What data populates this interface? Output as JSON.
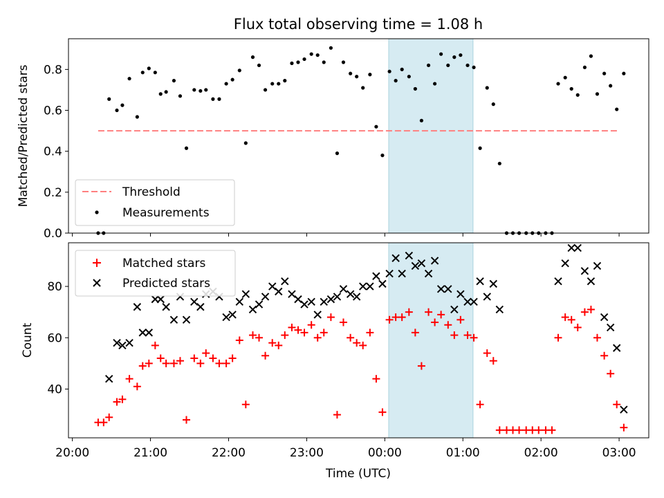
{
  "colors": {
    "threshold": "#ff7f7f",
    "measurement": "#000000",
    "matched": "#ff0000",
    "predicted": "#000000",
    "highlight": "#add8e6"
  },
  "chart_data": {
    "title": "Flux total observing time = 1.08 h",
    "xlabel": "Time (UTC)",
    "x_unit": "hours since 20:00 UTC",
    "x_range": [
      -0.05,
      7.38
    ],
    "x_ticks": [
      0,
      1,
      2,
      3,
      4,
      5,
      6,
      7
    ],
    "x_ticklabels": [
      "20:00",
      "21:00",
      "22:00",
      "23:00",
      "00:00",
      "01:00",
      "02:00",
      "03:00"
    ],
    "highlight_span": [
      4.05,
      5.13
    ],
    "panels": [
      {
        "type": "scatter",
        "ylabel": "Matched/Predicted stars",
        "ylim": [
          0,
          0.95
        ],
        "y_ticks": [
          0.0,
          0.2,
          0.4,
          0.6,
          0.8
        ],
        "y_ticklabels": [
          "0.0",
          "0.2",
          "0.4",
          "0.6",
          "0.8"
        ],
        "legend": {
          "position": "lower-left",
          "entries": [
            "Threshold",
            "Measurements"
          ]
        },
        "threshold": {
          "name": "Threshold",
          "value": 0.5,
          "x": [
            0.33,
            7.0
          ],
          "style": "dashed"
        },
        "series": [
          {
            "name": "Measurements",
            "marker": "dot",
            "points": [
              [
                0.33,
                0.0
              ],
              [
                0.4,
                0.0
              ],
              [
                0.47,
                0.655
              ],
              [
                0.57,
                0.6
              ],
              [
                0.64,
                0.625
              ],
              [
                0.73,
                0.755
              ],
              [
                0.83,
                0.568
              ],
              [
                0.9,
                0.785
              ],
              [
                0.98,
                0.805
              ],
              [
                1.06,
                0.785
              ],
              [
                1.13,
                0.68
              ],
              [
                1.2,
                0.69
              ],
              [
                1.3,
                0.745
              ],
              [
                1.38,
                0.67
              ],
              [
                1.46,
                0.415
              ],
              [
                1.56,
                0.7
              ],
              [
                1.64,
                0.695
              ],
              [
                1.71,
                0.7
              ],
              [
                1.8,
                0.655
              ],
              [
                1.88,
                0.655
              ],
              [
                1.97,
                0.73
              ],
              [
                2.05,
                0.75
              ],
              [
                2.14,
                0.795
              ],
              [
                2.22,
                0.44
              ],
              [
                2.31,
                0.86
              ],
              [
                2.39,
                0.82
              ],
              [
                2.47,
                0.7
              ],
              [
                2.56,
                0.73
              ],
              [
                2.64,
                0.73
              ],
              [
                2.72,
                0.745
              ],
              [
                2.81,
                0.83
              ],
              [
                2.89,
                0.835
              ],
              [
                2.97,
                0.85
              ],
              [
                3.06,
                0.875
              ],
              [
                3.14,
                0.87
              ],
              [
                3.22,
                0.835
              ],
              [
                3.31,
                0.905
              ],
              [
                3.39,
                0.39
              ],
              [
                3.47,
                0.835
              ],
              [
                3.56,
                0.78
              ],
              [
                3.64,
                0.765
              ],
              [
                3.72,
                0.71
              ],
              [
                3.81,
                0.775
              ],
              [
                3.89,
                0.52
              ],
              [
                3.97,
                0.38
              ],
              [
                4.06,
                0.79
              ],
              [
                4.14,
                0.745
              ],
              [
                4.22,
                0.8
              ],
              [
                4.31,
                0.765
              ],
              [
                4.39,
                0.705
              ],
              [
                4.47,
                0.55
              ],
              [
                4.56,
                0.82
              ],
              [
                4.64,
                0.73
              ],
              [
                4.72,
                0.875
              ],
              [
                4.81,
                0.82
              ],
              [
                4.89,
                0.86
              ],
              [
                4.97,
                0.87
              ],
              [
                5.06,
                0.82
              ],
              [
                5.14,
                0.81
              ],
              [
                5.22,
                0.415
              ],
              [
                5.31,
                0.71
              ],
              [
                5.39,
                0.63
              ],
              [
                5.47,
                0.34
              ],
              [
                5.56,
                0.0
              ],
              [
                5.64,
                0.0
              ],
              [
                5.72,
                0.0
              ],
              [
                5.81,
                0.0
              ],
              [
                5.89,
                0.0
              ],
              [
                5.97,
                0.0
              ],
              [
                6.06,
                0.0
              ],
              [
                6.14,
                0.0
              ],
              [
                6.22,
                0.73
              ],
              [
                6.31,
                0.76
              ],
              [
                6.39,
                0.705
              ],
              [
                6.47,
                0.675
              ],
              [
                6.56,
                0.81
              ],
              [
                6.64,
                0.865
              ],
              [
                6.72,
                0.68
              ],
              [
                6.81,
                0.78
              ],
              [
                6.89,
                0.72
              ],
              [
                6.97,
                0.605
              ],
              [
                7.06,
                0.78
              ]
            ]
          }
        ]
      },
      {
        "type": "scatter",
        "ylabel": "Count",
        "ylim": [
          21,
          97
        ],
        "y_ticks": [
          40,
          60,
          80
        ],
        "y_ticklabels": [
          "40",
          "60",
          "80"
        ],
        "legend": {
          "position": "upper-left",
          "entries": [
            "Matched stars",
            "Predicted stars"
          ]
        },
        "series": [
          {
            "name": "Matched stars",
            "marker": "plus",
            "points": [
              [
                0.33,
                27
              ],
              [
                0.4,
                27
              ],
              [
                0.47,
                29
              ],
              [
                0.57,
                35
              ],
              [
                0.64,
                36
              ],
              [
                0.73,
                44
              ],
              [
                0.83,
                41
              ],
              [
                0.9,
                49
              ],
              [
                0.98,
                50
              ],
              [
                1.06,
                57
              ],
              [
                1.13,
                52
              ],
              [
                1.2,
                50
              ],
              [
                1.3,
                50
              ],
              [
                1.38,
                51
              ],
              [
                1.46,
                28
              ],
              [
                1.56,
                52
              ],
              [
                1.64,
                50
              ],
              [
                1.71,
                54
              ],
              [
                1.8,
                52
              ],
              [
                1.88,
                50
              ],
              [
                1.97,
                50
              ],
              [
                2.05,
                52
              ],
              [
                2.14,
                59
              ],
              [
                2.22,
                34
              ],
              [
                2.31,
                61
              ],
              [
                2.39,
                60
              ],
              [
                2.47,
                53
              ],
              [
                2.56,
                58
              ],
              [
                2.64,
                57
              ],
              [
                2.72,
                61
              ],
              [
                2.81,
                64
              ],
              [
                2.89,
                63
              ],
              [
                2.97,
                62
              ],
              [
                3.06,
                65
              ],
              [
                3.14,
                60
              ],
              [
                3.22,
                62
              ],
              [
                3.31,
                68
              ],
              [
                3.39,
                30
              ],
              [
                3.47,
                66
              ],
              [
                3.56,
                60
              ],
              [
                3.64,
                58
              ],
              [
                3.72,
                57
              ],
              [
                3.81,
                62
              ],
              [
                3.89,
                44
              ],
              [
                3.97,
                31
              ],
              [
                4.06,
                67
              ],
              [
                4.14,
                68
              ],
              [
                4.22,
                68
              ],
              [
                4.31,
                70
              ],
              [
                4.39,
                62
              ],
              [
                4.47,
                49
              ],
              [
                4.56,
                70
              ],
              [
                4.64,
                66
              ],
              [
                4.72,
                69
              ],
              [
                4.81,
                65
              ],
              [
                4.89,
                61
              ],
              [
                4.97,
                67
              ],
              [
                5.06,
                61
              ],
              [
                5.14,
                60
              ],
              [
                5.22,
                34
              ],
              [
                5.31,
                54
              ],
              [
                5.39,
                51
              ],
              [
                5.47,
                24
              ],
              [
                5.56,
                24
              ],
              [
                5.64,
                24
              ],
              [
                5.72,
                24
              ],
              [
                5.81,
                24
              ],
              [
                5.89,
                24
              ],
              [
                5.97,
                24
              ],
              [
                6.06,
                24
              ],
              [
                6.14,
                24
              ],
              [
                6.22,
                60
              ],
              [
                6.31,
                68
              ],
              [
                6.39,
                67
              ],
              [
                6.47,
                64
              ],
              [
                6.56,
                70
              ],
              [
                6.64,
                71
              ],
              [
                6.72,
                60
              ],
              [
                6.81,
                53
              ],
              [
                6.89,
                46
              ],
              [
                6.97,
                34
              ],
              [
                7.06,
                25
              ]
            ]
          },
          {
            "name": "Predicted stars",
            "marker": "x",
            "points": [
              [
                0.47,
                44
              ],
              [
                0.57,
                58
              ],
              [
                0.64,
                57
              ],
              [
                0.73,
                58
              ],
              [
                0.83,
                72
              ],
              [
                0.9,
                62
              ],
              [
                0.98,
                62
              ],
              [
                1.06,
                75
              ],
              [
                1.13,
                75
              ],
              [
                1.2,
                72
              ],
              [
                1.3,
                67
              ],
              [
                1.38,
                76
              ],
              [
                1.46,
                67
              ],
              [
                1.56,
                74
              ],
              [
                1.64,
                72
              ],
              [
                1.71,
                77
              ],
              [
                1.8,
                78
              ],
              [
                1.88,
                76
              ],
              [
                1.97,
                68
              ],
              [
                2.05,
                69
              ],
              [
                2.14,
                74
              ],
              [
                2.22,
                77
              ],
              [
                2.31,
                71
              ],
              [
                2.39,
                73
              ],
              [
                2.47,
                76
              ],
              [
                2.56,
                80
              ],
              [
                2.64,
                78
              ],
              [
                2.72,
                82
              ],
              [
                2.81,
                77
              ],
              [
                2.89,
                75
              ],
              [
                2.97,
                73
              ],
              [
                3.06,
                74
              ],
              [
                3.14,
                69
              ],
              [
                3.22,
                74
              ],
              [
                3.31,
                75
              ],
              [
                3.39,
                76
              ],
              [
                3.47,
                79
              ],
              [
                3.56,
                77
              ],
              [
                3.64,
                76
              ],
              [
                3.72,
                80
              ],
              [
                3.81,
                80
              ],
              [
                3.89,
                84
              ],
              [
                3.97,
                81
              ],
              [
                4.06,
                85
              ],
              [
                4.14,
                91
              ],
              [
                4.22,
                85
              ],
              [
                4.31,
                92
              ],
              [
                4.39,
                88
              ],
              [
                4.47,
                89
              ],
              [
                4.56,
                85
              ],
              [
                4.64,
                90
              ],
              [
                4.72,
                79
              ],
              [
                4.81,
                79
              ],
              [
                4.89,
                71
              ],
              [
                4.97,
                77
              ],
              [
                5.06,
                74
              ],
              [
                5.14,
                74
              ],
              [
                5.22,
                82
              ],
              [
                5.31,
                76
              ],
              [
                5.39,
                81
              ],
              [
                5.47,
                71
              ],
              [
                6.22,
                82
              ],
              [
                6.31,
                89
              ],
              [
                6.39,
                95
              ],
              [
                6.47,
                95
              ],
              [
                6.56,
                86
              ],
              [
                6.64,
                82
              ],
              [
                6.72,
                88
              ],
              [
                6.81,
                68
              ],
              [
                6.89,
                64
              ],
              [
                6.97,
                56
              ],
              [
                7.06,
                32
              ]
            ]
          }
        ]
      }
    ]
  }
}
